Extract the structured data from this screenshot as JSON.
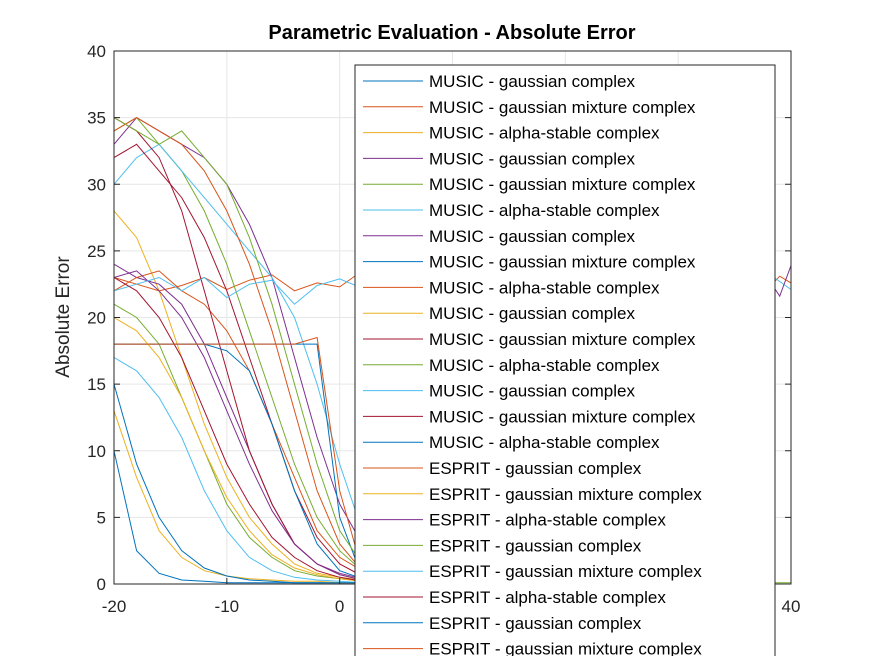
{
  "chart_data": {
    "type": "line",
    "title": "Parametric Evaluation - Absolute Error",
    "xlabel": "",
    "ylabel": "Absolute Error",
    "xlim": [
      -20,
      40
    ],
    "ylim": [
      0,
      40
    ],
    "x_ticks": [
      "-20",
      "-10",
      "0",
      "40"
    ],
    "y_ticks": [
      "0",
      "5",
      "10",
      "15",
      "20",
      "25",
      "30",
      "35",
      "40"
    ],
    "grid": true,
    "legend_position": "top-right",
    "colors": [
      "#0072BD",
      "#D95319",
      "#EDB120",
      "#7E2F8E",
      "#77AC30",
      "#4DBEEE",
      "#A2142F"
    ],
    "series": [
      {
        "name": "MUSIC - gaussian complex",
        "color": "#0072BD",
        "x": [
          -20,
          -18,
          -16,
          -14,
          -12,
          -10,
          -8,
          -6,
          -4,
          -2,
          0,
          2
        ],
        "values": [
          10,
          2.5,
          0.8,
          0.3,
          0.2,
          0.1,
          0.1,
          0.1,
          0.1,
          0.1,
          0.1,
          0.1
        ]
      },
      {
        "name": "MUSIC - gaussian mixture complex",
        "color": "#D95319",
        "x": [
          -20,
          -18,
          -16,
          -14,
          -12,
          -10,
          -8,
          -6,
          -4,
          -2,
          0,
          2
        ],
        "values": [
          23,
          22.5,
          22,
          22.4,
          23,
          22.1,
          22.8,
          23.2,
          22,
          22.6,
          22.3,
          23.5
        ]
      },
      {
        "name": "MUSIC - alpha-stable complex",
        "color": "#EDB120",
        "x": [
          -20,
          -18,
          -16,
          -14,
          -12,
          -10,
          -8,
          -6,
          -4,
          -2,
          0,
          2
        ],
        "values": [
          28,
          26,
          22,
          17,
          12,
          8,
          5,
          3,
          1.5,
          0.8,
          0.5,
          0.3
        ]
      },
      {
        "name": "MUSIC - gaussian complex",
        "color": "#7E2F8E",
        "x": [
          -20,
          -18,
          -16,
          -14,
          -12,
          -10,
          -8,
          -6,
          -4,
          -2,
          0,
          2
        ],
        "values": [
          33,
          35,
          34,
          33,
          32,
          30,
          27,
          23,
          17,
          11,
          6,
          3
        ]
      },
      {
        "name": "MUSIC - gaussian mixture complex",
        "color": "#77AC30",
        "x": [
          -20,
          -18,
          -16,
          -14,
          -12,
          -10,
          -8,
          -6,
          -4,
          -2,
          0,
          2
        ],
        "values": [
          34,
          35,
          33,
          31,
          28,
          24,
          19,
          14,
          9,
          5,
          2.5,
          1
        ]
      },
      {
        "name": "MUSIC - alpha-stable complex",
        "color": "#4DBEEE",
        "x": [
          -20,
          -18,
          -16,
          -14,
          -12,
          -10,
          -8,
          -6,
          -4,
          -2,
          0,
          2
        ],
        "values": [
          30,
          32,
          33,
          31,
          29,
          27,
          25,
          23,
          20,
          15,
          9,
          4
        ]
      },
      {
        "name": "MUSIC - gaussian complex",
        "color": "#7E2F8E",
        "x": [
          -20,
          -18,
          -16,
          -14,
          -12,
          -10,
          -8,
          -6,
          -4,
          -2,
          0,
          2
        ],
        "values": [
          24,
          23,
          22.5,
          21,
          18,
          14,
          10,
          6,
          3,
          1.5,
          0.8,
          0.4
        ]
      },
      {
        "name": "MUSIC - gaussian mixture complex",
        "color": "#0072BD",
        "x": [
          -20,
          -18,
          -16,
          -14,
          -12,
          -10,
          -8,
          -6,
          -4,
          -2,
          0,
          2
        ],
        "values": [
          18,
          18,
          18,
          18,
          18,
          18,
          18,
          18,
          18,
          18,
          5,
          0.5
        ]
      },
      {
        "name": "MUSIC - alpha-stable complex",
        "color": "#D95319",
        "x": [
          -20,
          -18,
          -16,
          -14,
          -12,
          -10,
          -8,
          -6,
          -4,
          -2,
          0,
          2
        ],
        "values": [
          22,
          23,
          23.5,
          22,
          21,
          19,
          16,
          12,
          8,
          4,
          2,
          1
        ]
      },
      {
        "name": "MUSIC - gaussian complex",
        "color": "#EDB120",
        "x": [
          -20,
          -18,
          -16,
          -14,
          -12,
          -10,
          -8,
          -6,
          -4,
          -2,
          0,
          2
        ],
        "values": [
          13,
          8,
          4,
          2,
          1,
          0.6,
          0.4,
          0.3,
          0.2,
          0.2,
          0.1,
          0.1
        ]
      },
      {
        "name": "MUSIC - gaussian mixture complex",
        "color": "#A2142F",
        "x": [
          -20,
          -18,
          -16,
          -14,
          -12,
          -10,
          -8,
          -6,
          -4,
          -2,
          0,
          2
        ],
        "values": [
          35,
          34,
          32,
          28,
          22,
          16,
          10,
          6,
          3,
          1.5,
          0.7,
          0.3
        ]
      },
      {
        "name": "MUSIC - alpha-stable complex",
        "color": "#77AC30",
        "x": [
          -20,
          -18,
          -16,
          -14,
          -12,
          -10,
          -8,
          -6,
          -4,
          -2,
          0,
          2
        ],
        "values": [
          21,
          20,
          18,
          14,
          10,
          6,
          3.5,
          2,
          1,
          0.6,
          0.4,
          0.2
        ]
      },
      {
        "name": "MUSIC - gaussian complex",
        "color": "#4DBEEE",
        "x": [
          -20,
          -18,
          -16,
          -14,
          -12,
          -10,
          -8,
          -6,
          -4,
          -2,
          0,
          2
        ],
        "values": [
          17,
          16,
          14,
          11,
          7,
          4,
          2,
          1,
          0.5,
          0.3,
          0.2,
          0.1
        ]
      },
      {
        "name": "MUSIC - gaussian mixture complex",
        "color": "#A2142F",
        "x": [
          -20,
          -18,
          -16,
          -14,
          -12,
          -10,
          -8,
          -6,
          -4,
          -2,
          0,
          2
        ],
        "values": [
          32,
          33,
          31,
          29,
          26,
          22,
          17,
          12,
          7,
          3.5,
          1.5,
          0.6
        ]
      },
      {
        "name": "MUSIC - alpha-stable complex",
        "color": "#0072BD",
        "x": [
          -20,
          -18,
          -16,
          -14,
          -12,
          -10,
          -8,
          -6,
          -4,
          -2,
          0,
          2
        ],
        "values": [
          18,
          18,
          18,
          18,
          18,
          17.5,
          16,
          12,
          7,
          3,
          1,
          0.4
        ]
      },
      {
        "name": "ESPRIT - gaussian complex",
        "color": "#D95319",
        "x": [
          -20,
          -18,
          -16,
          -14,
          -12,
          -10,
          -8,
          -6,
          -4,
          -2,
          0,
          2
        ],
        "values": [
          34,
          35,
          34,
          33,
          31,
          28,
          24,
          19,
          13,
          7,
          3,
          1
        ]
      },
      {
        "name": "ESPRIT - gaussian mixture complex",
        "color": "#EDB120",
        "x": [
          -20,
          -18,
          -16,
          -14,
          -12,
          -10,
          -8,
          -6,
          -4,
          -2,
          0,
          2
        ],
        "values": [
          20,
          19,
          17,
          14,
          10,
          6.5,
          4,
          2.2,
          1.2,
          0.7,
          0.4,
          0.2
        ]
      },
      {
        "name": "ESPRIT - alpha-stable complex",
        "color": "#7E2F8E",
        "x": [
          -20,
          -18,
          -16,
          -14,
          -12,
          -10,
          -8,
          -6,
          -4,
          -2,
          0,
          2
        ],
        "values": [
          23,
          23.5,
          22,
          20,
          17,
          13,
          9,
          5.5,
          3,
          1.5,
          0.7,
          0.3
        ]
      },
      {
        "name": "ESPRIT - gaussian complex",
        "color": "#77AC30",
        "x": [
          -20,
          -18,
          -16,
          -14,
          -12,
          -10,
          -8,
          -6,
          -4,
          -2,
          0,
          2
        ],
        "values": [
          35,
          34,
          33,
          34,
          32,
          30,
          26,
          21,
          15,
          9,
          4,
          1.5
        ]
      },
      {
        "name": "ESPRIT - gaussian mixture complex",
        "color": "#4DBEEE",
        "x": [
          -20,
          -18,
          -16,
          -14,
          -12,
          -10,
          -8,
          -6,
          -4,
          -2,
          0,
          2
        ],
        "values": [
          22,
          22.5,
          23,
          22,
          23,
          21.5,
          22.5,
          22.8,
          21,
          22.4,
          22.9,
          22.2
        ]
      },
      {
        "name": "ESPRIT - alpha-stable complex",
        "color": "#A2142F",
        "x": [
          -20,
          -18,
          -16,
          -14,
          -12,
          -10,
          -8,
          -6,
          -4,
          -2,
          0,
          2
        ],
        "values": [
          23,
          22,
          20,
          17,
          13,
          9,
          6,
          3.5,
          2,
          1,
          0.5,
          0.2
        ]
      },
      {
        "name": "ESPRIT - gaussian complex",
        "color": "#0072BD",
        "x": [
          -20,
          -18,
          -16,
          -14,
          -12,
          -10,
          -8,
          -6,
          -4,
          -2,
          0,
          2
        ],
        "values": [
          15,
          9,
          5,
          2.5,
          1.2,
          0.6,
          0.3,
          0.2,
          0.1,
          0.1,
          0.1,
          0.1
        ]
      },
      {
        "name": "ESPRIT - gaussian mixture complex",
        "color": "#D95319",
        "x": [
          -20,
          -18,
          -16,
          -14,
          -12,
          -10,
          -8,
          -6,
          -4,
          -2,
          0,
          2
        ],
        "values": [
          18,
          18,
          18,
          18,
          18,
          18,
          18,
          18,
          18,
          18.5,
          7,
          1
        ]
      }
    ],
    "right_series": [
      {
        "color": "#D95319",
        "x": [
          35,
          36,
          37,
          38,
          39,
          40
        ],
        "values": [
          23,
          22.5,
          23.5,
          22.2,
          23.1,
          22.6
        ]
      },
      {
        "color": "#4DBEEE",
        "x": [
          35,
          36,
          37,
          38,
          39,
          40
        ],
        "values": [
          22.4,
          23.2,
          22.1,
          23.3,
          22.7,
          22.1
        ]
      },
      {
        "color": "#7E2F8E",
        "x": [
          35,
          36,
          37,
          38,
          39,
          40
        ],
        "values": [
          22.1,
          22.8,
          23.6,
          22.9,
          21.6,
          23.9
        ]
      },
      {
        "color": "#77AC30",
        "x": [
          35,
          36,
          37,
          38,
          39,
          40
        ],
        "values": [
          0.1,
          0.1,
          0.1,
          0.1,
          0.1,
          0.1
        ]
      }
    ]
  }
}
